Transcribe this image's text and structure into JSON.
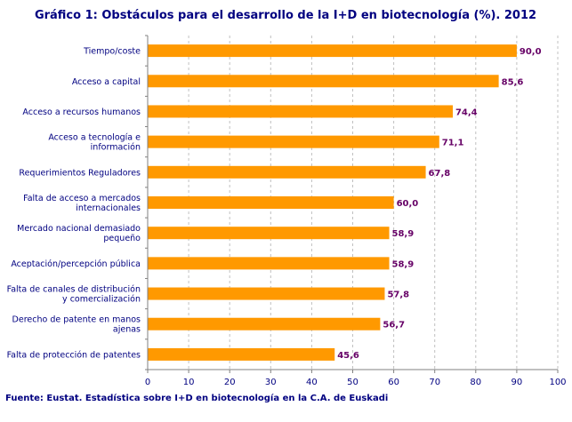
{
  "chart_data": {
    "type": "bar",
    "orientation": "horizontal",
    "title": "Gráfico 1: Obstáculos para el desarrollo de la I+D en biotecnología (%). 2012",
    "categories": [
      "Tiempo/coste",
      "Acceso a capital",
      "Acceso a recursos humanos",
      "Acceso a tecnología e información",
      "Requerimientos Reguladores",
      "Falta de acceso a mercados internacionales",
      "Mercado nacional demasiado pequeño",
      "Aceptación/percepción pública",
      "Falta de canales de distribución y comercialización",
      "Derecho de patente en manos ajenas",
      "Falta de protección de patentes"
    ],
    "category_lines": [
      [
        "Tiempo/coste"
      ],
      [
        "Acceso a capital"
      ],
      [
        "Acceso a recursos humanos"
      ],
      [
        "Acceso a tecnología e",
        "información"
      ],
      [
        "Requerimientos Reguladores"
      ],
      [
        "Falta de acceso a mercados",
        "internacionales"
      ],
      [
        "Mercado nacional demasiado",
        "pequeño"
      ],
      [
        "Aceptación/percepción pública"
      ],
      [
        "Falta de canales de distribución",
        "y comercialización"
      ],
      [
        "Derecho de patente en manos",
        "ajenas"
      ],
      [
        "Falta de protección de patentes"
      ]
    ],
    "values": [
      90.0,
      85.6,
      74.4,
      71.1,
      67.8,
      60.0,
      58.9,
      58.9,
      57.8,
      56.7,
      45.6
    ],
    "value_labels": [
      "90,0",
      "85,6",
      "74,4",
      "71,1",
      "67,8",
      "60,0",
      "58,9",
      "58,9",
      "57,8",
      "56,7",
      "45,6"
    ],
    "xlim": [
      0,
      100
    ],
    "xticks": [
      0,
      10,
      20,
      30,
      40,
      50,
      60,
      70,
      80,
      90,
      100
    ],
    "grid": "vertical dashed",
    "legend": "none",
    "colors": {
      "bar": "#FF9900",
      "text": "#000080",
      "value": "#660066",
      "grid": "#C0C0C0"
    }
  },
  "source": "Fuente: Eustat. Estadística sobre I+D en biotecnología en la C.A. de Euskadi"
}
